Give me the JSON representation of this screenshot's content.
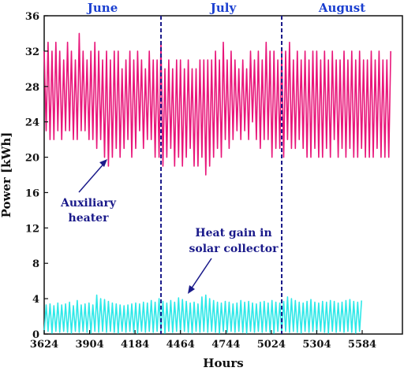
{
  "chart_data": {
    "type": "line",
    "xlabel": "Hours",
    "ylabel": "Power [kWh]",
    "xlim": [
      3624,
      5832
    ],
    "ylim": [
      0,
      36
    ],
    "x_ticks": [
      "3624",
      "3904",
      "4184",
      "4464",
      "4744",
      "5024",
      "5304",
      "5584"
    ],
    "y_ticks": [
      "0",
      "4",
      "8",
      "12",
      "16",
      "20",
      "24",
      "28",
      "32",
      "36"
    ],
    "grid": false,
    "months": [
      {
        "label": "June",
        "x_center": 3984
      },
      {
        "label": "July",
        "x_center": 4728
      },
      {
        "label": "August",
        "x_center": 5460
      }
    ],
    "month_dividers_x": [
      4344,
      5088
    ],
    "series": [
      {
        "key": "auxiliary-heater",
        "color": "#e8167a",
        "x_start": 3624,
        "step_hours": 12,
        "values": [
          32,
          23,
          33,
          22,
          32,
          22,
          33,
          23,
          32,
          22,
          31,
          23,
          33,
          23,
          32,
          22,
          31,
          22,
          34,
          23,
          32,
          23,
          31,
          22,
          32,
          22,
          33,
          21,
          32,
          22,
          31,
          20,
          32,
          19,
          31,
          20,
          32,
          21,
          32,
          20,
          30,
          21,
          31,
          22,
          32,
          20,
          31,
          21,
          32,
          23,
          31,
          21,
          30,
          22,
          32,
          22,
          31,
          20,
          31,
          20,
          33,
          19,
          30,
          20,
          31,
          21,
          30,
          19,
          31,
          20,
          31,
          19,
          30,
          20,
          31,
          21,
          30,
          19,
          30,
          19,
          31,
          20,
          31,
          18,
          31,
          19,
          31,
          20,
          32,
          21,
          31,
          20,
          33,
          22,
          31,
          21,
          32,
          22,
          31,
          23,
          30,
          22,
          31,
          23,
          30,
          22,
          32,
          24,
          31,
          22,
          32,
          21,
          31,
          22,
          33,
          22,
          32,
          20,
          32,
          21,
          31,
          21,
          32,
          20,
          32,
          22,
          33,
          21,
          31,
          21,
          32,
          22,
          31,
          21,
          32,
          20,
          31,
          20,
          32,
          21,
          32,
          20,
          31,
          20,
          32,
          21,
          31,
          20,
          32,
          22,
          31,
          20,
          31,
          21,
          32,
          20,
          31,
          21,
          32,
          20,
          31,
          20,
          32,
          21,
          31,
          20,
          31,
          20,
          32,
          20,
          31,
          21,
          32,
          20,
          31,
          20,
          31,
          20,
          32
        ]
      },
      {
        "key": "heat-gain-solar-collector",
        "color": "#2ee8e8",
        "x_start": 3624,
        "step_hours": 12,
        "values": [
          0.2,
          3.3,
          0.3,
          3.4,
          0.1,
          3.2,
          0.3,
          3.5,
          0.2,
          3.3,
          0.3,
          3.4,
          0.2,
          3.6,
          0.1,
          3.2,
          0.3,
          3.8,
          0.2,
          3.3,
          0.3,
          3.4,
          0.2,
          3.5,
          0.1,
          3.3,
          0.3,
          4.4,
          0.2,
          4.0,
          0.3,
          3.9,
          0.2,
          3.7,
          0.3,
          3.5,
          0.2,
          3.4,
          0.1,
          3.3,
          0.3,
          3.2,
          0.2,
          3.3,
          0.3,
          3.4,
          0.2,
          3.5,
          0.1,
          3.4,
          0.3,
          3.6,
          0.2,
          3.5,
          0.3,
          3.8,
          0.2,
          3.6,
          0.3,
          4.0,
          0.2,
          3.7,
          0.1,
          3.5,
          0.3,
          3.8,
          0.2,
          3.6,
          0.3,
          4.1,
          0.2,
          3.9,
          0.3,
          3.7,
          0.2,
          3.5,
          0.1,
          3.6,
          0.3,
          3.4,
          0.2,
          4.2,
          0.3,
          4.4,
          0.2,
          4.0,
          0.3,
          3.8,
          0.2,
          3.6,
          0.1,
          3.5,
          0.3,
          3.7,
          0.2,
          3.6,
          0.3,
          3.4,
          0.2,
          3.5,
          0.3,
          3.8,
          0.2,
          3.6,
          0.1,
          3.7,
          0.3,
          3.5,
          0.2,
          3.4,
          0.3,
          3.6,
          0.2,
          3.7,
          0.3,
          3.5,
          0.2,
          3.8,
          0.1,
          3.6,
          0.3,
          3.5,
          0.2,
          3.7,
          0.3,
          4.2,
          0.2,
          4.0,
          0.3,
          3.8,
          0.2,
          3.6,
          0.1,
          3.5,
          0.3,
          3.7,
          0.2,
          3.9,
          0.3,
          3.6,
          0.2,
          3.5,
          0.3,
          3.7,
          0.2,
          3.6,
          0.1,
          3.8,
          0.3,
          3.7,
          0.2,
          3.5,
          0.3,
          3.6,
          0.2,
          3.8,
          0.3,
          3.9,
          0.2,
          3.7,
          0.1,
          3.6,
          0.3,
          3.8
        ]
      }
    ],
    "annotations": [
      {
        "key": "aux",
        "lines": [
          "Auxiliary",
          "heater"
        ],
        "color": "#1a1a8a"
      },
      {
        "key": "gain",
        "lines": [
          "Heat gain in",
          "solar collector"
        ],
        "color": "#1a1a8a"
      }
    ]
  }
}
